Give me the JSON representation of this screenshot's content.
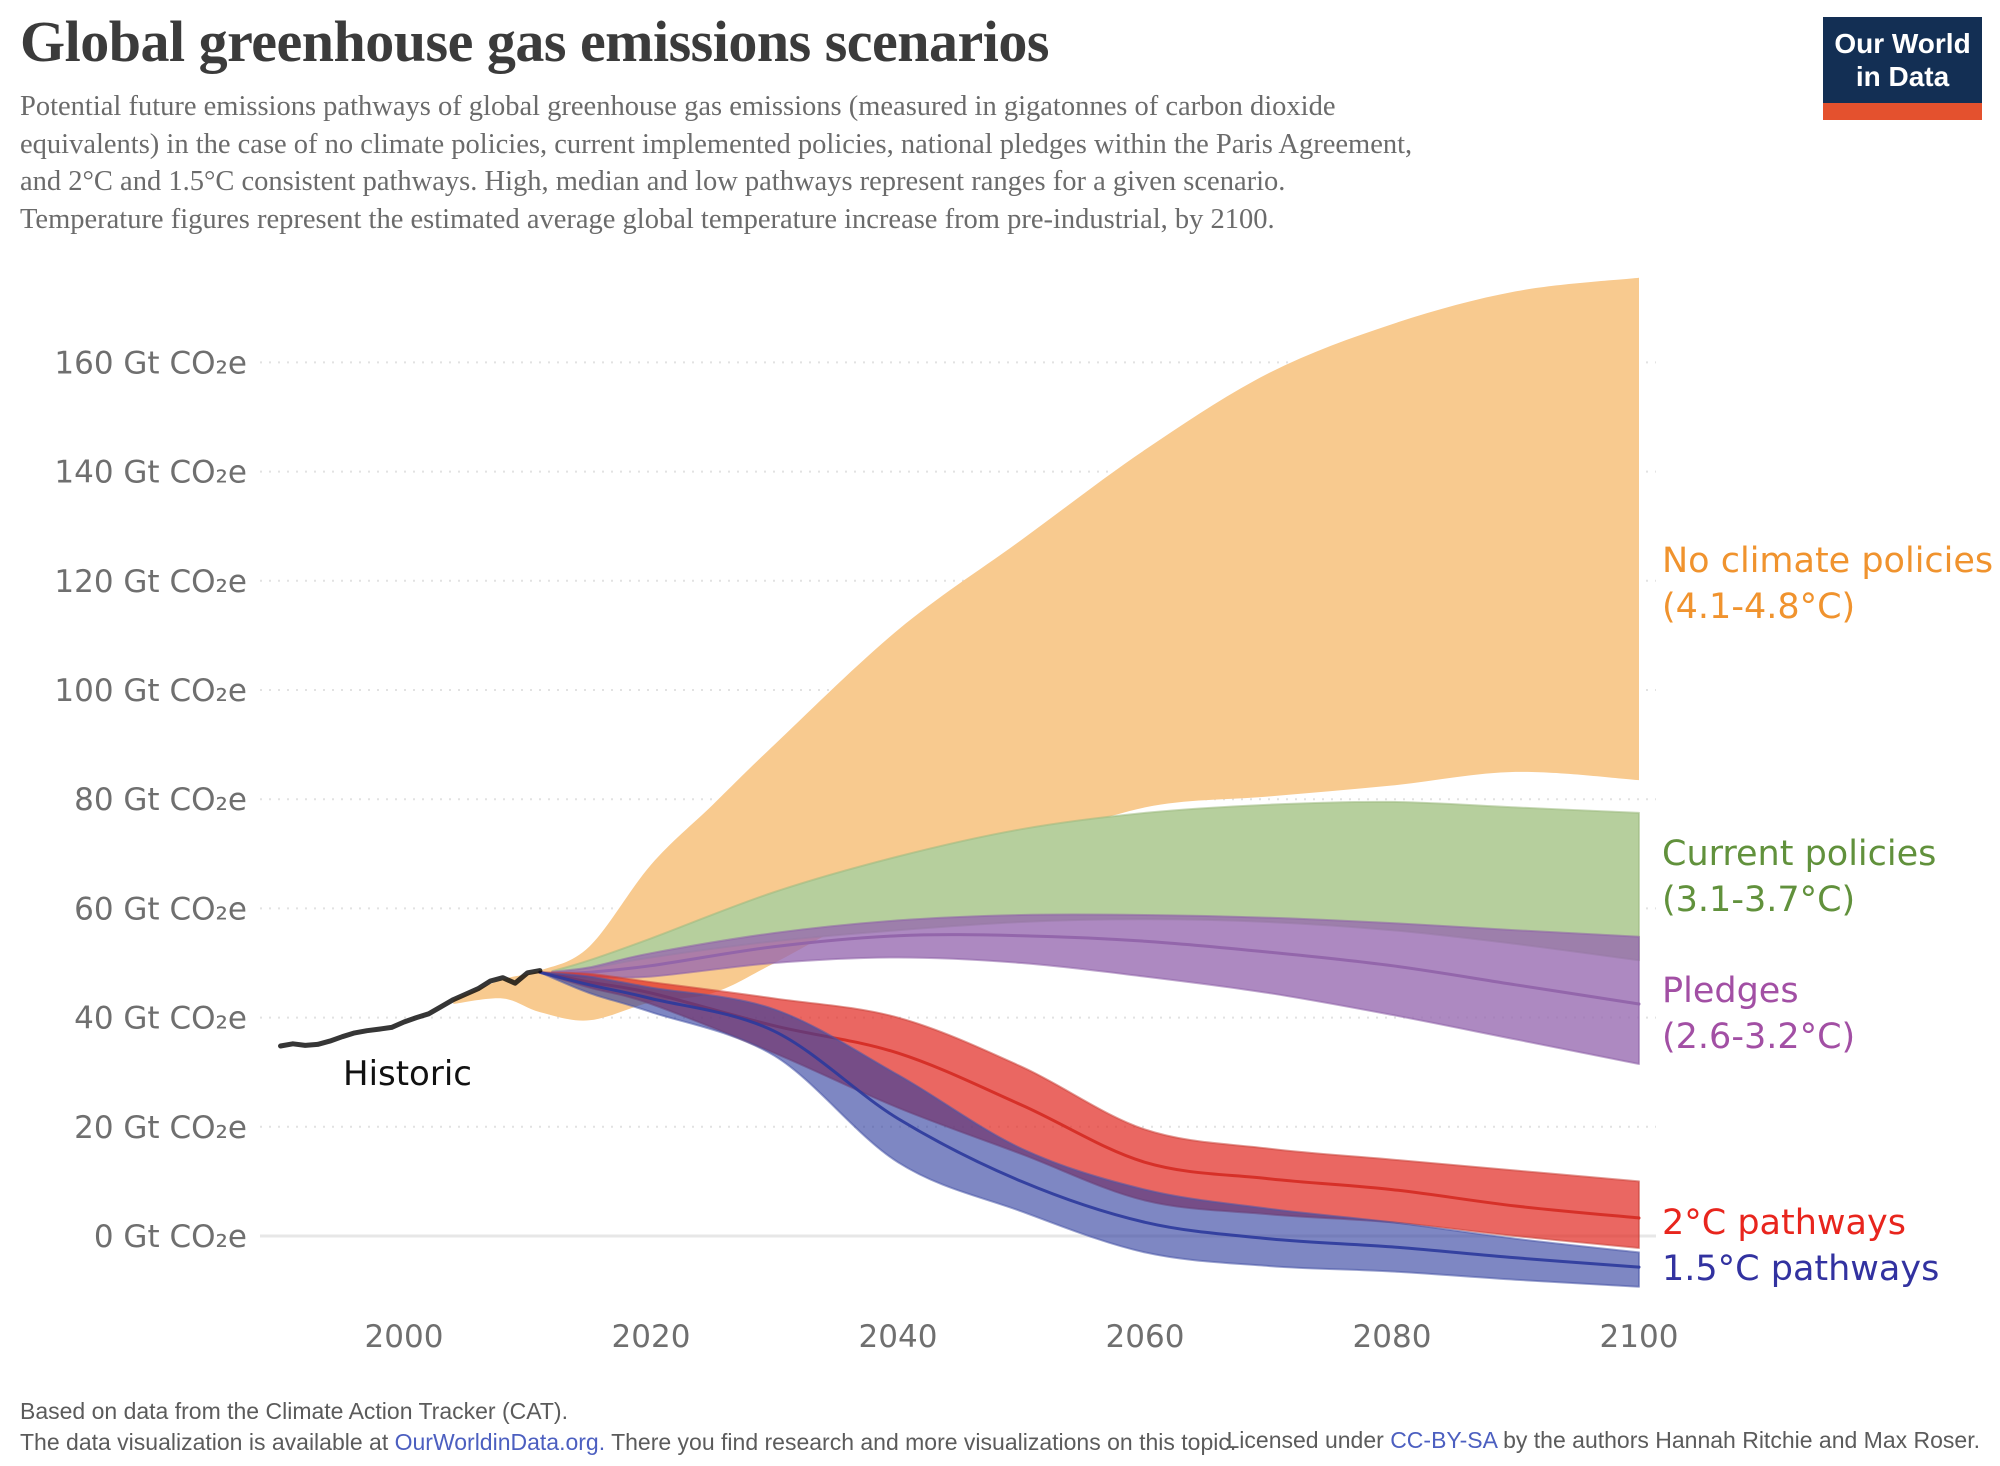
{
  "header": {
    "title": "Global greenhouse gas emissions scenarios",
    "subtitle_lines": [
      "Potential future emissions pathways of global greenhouse gas emissions (measured in gigatonnes of carbon dioxide",
      "equivalents) in the case of no climate policies, current implemented policies, national pledges within the Paris Agreement,",
      "and 2°C and 1.5°C consistent pathways. High, median and low pathways represent ranges for a given scenario.",
      "Temperature figures represent the estimated average global temperature increase from pre-industrial, by 2100."
    ]
  },
  "logo": {
    "line1": "Our World",
    "line2": "in Data",
    "bg": "#132F54",
    "bar": "#E4512E"
  },
  "chart_data": {
    "type": "area",
    "title": "Global greenhouse gas emissions scenarios",
    "y_unit": "Gt CO₂e",
    "xlabel": "",
    "ylabel": "Gt CO₂e",
    "x_ticks": [
      2000,
      2020,
      2040,
      2060,
      2080,
      2100
    ],
    "y_ticks": [
      0,
      20,
      40,
      60,
      80,
      100,
      120,
      140,
      160
    ],
    "x_range": [
      1990,
      2100
    ],
    "y_range": [
      -17,
      178
    ],
    "grid": "dotted-horizontal",
    "legend_position": "right-of-bands",
    "historic": {
      "label": "Historic",
      "color": "rgba(10,10,10,0.82)",
      "years": [
        1990,
        1991,
        1992,
        1993,
        1994,
        1995,
        1996,
        1997,
        1998,
        1999,
        2000,
        2001,
        2002,
        2003,
        2004,
        2005,
        2006,
        2007,
        2008,
        2009,
        2010,
        2011
      ],
      "values": [
        34.8,
        35.2,
        34.9,
        35.1,
        35.7,
        36.5,
        37.2,
        37.6,
        37.9,
        38.2,
        39.2,
        40.0,
        40.7,
        42.0,
        43.3,
        44.3,
        45.3,
        46.7,
        47.3,
        46.3,
        48.2,
        48.6
      ]
    },
    "scenarios": [
      {
        "id": "no_climate_policies",
        "name": "No climate policies",
        "temp_range": "(4.1-4.8°C)",
        "fill": "#F8CA8F",
        "stroke": "none",
        "label_color": "#F0932E",
        "years": [
          2004,
          2008,
          2011,
          2015,
          2020,
          2025,
          2030,
          2040,
          2050,
          2060,
          2070,
          2080,
          2090,
          2100
        ],
        "high": [
          43.3,
          47,
          48.6,
          53,
          68,
          79,
          90,
          111,
          127.5,
          144,
          158,
          167,
          173,
          175.5
        ],
        "low": [
          42.5,
          43.5,
          41,
          39.5,
          42.8,
          44.5,
          50,
          62,
          71,
          78.5,
          80.5,
          82.5,
          85,
          83.5
        ]
      },
      {
        "id": "current_policies",
        "name": "Current policies",
        "temp_range": "(3.1-3.7°C)",
        "fill": "#B6CF9D",
        "stroke": "#9CB97F",
        "label_color": "#61913C",
        "years": [
          2012,
          2015,
          2020,
          2030,
          2040,
          2050,
          2060,
          2070,
          2080,
          2090,
          2100
        ],
        "high": [
          48.5,
          50.5,
          54.5,
          63,
          69.5,
          74.5,
          77.5,
          79,
          79.5,
          78.5,
          77.5
        ],
        "low": [
          48.2,
          49,
          51,
          54,
          56,
          57.5,
          58,
          57.5,
          56,
          53.5,
          50.5
        ]
      },
      {
        "id": "pledges",
        "name": "Pledges",
        "temp_range": "(2.6-3.2°C)",
        "fill": "rgba(150,104,176,0.78)",
        "stroke": "#8E62A8",
        "median_color": "#9063A8",
        "label_color": "#A24FA4",
        "years": [
          2012,
          2015,
          2020,
          2030,
          2040,
          2050,
          2060,
          2070,
          2080,
          2090,
          2100
        ],
        "high": [
          48.4,
          49.2,
          51.8,
          55.5,
          57.8,
          58.8,
          58.8,
          58.3,
          57.3,
          56,
          54.8
        ],
        "median": [
          48.1,
          48.3,
          49.5,
          53,
          55,
          55,
          54,
          52,
          49.5,
          46,
          42.5
        ],
        "low": [
          47.8,
          47.5,
          47.5,
          50,
          51,
          50,
          47.5,
          44.5,
          40.5,
          36,
          31.5
        ]
      },
      {
        "id": "two_degree",
        "name": "2°C pathways",
        "temp_range": "",
        "fill": "rgba(226,44,38,0.72)",
        "stroke": "#C9453C",
        "median_color": "#D42A22",
        "label_color": "#E8251D",
        "years": [
          2011,
          2015,
          2020,
          2030,
          2040,
          2050,
          2060,
          2070,
          2080,
          2090,
          2100
        ],
        "high": [
          48.3,
          48,
          46.5,
          43.5,
          40,
          31,
          19.5,
          16,
          14,
          12,
          10
        ],
        "median": [
          48.3,
          46.5,
          44.5,
          38.5,
          33.5,
          24,
          13.5,
          10.5,
          8.5,
          5.5,
          3.3
        ],
        "low": [
          48.3,
          45.5,
          42.5,
          33.5,
          23.5,
          15,
          6.5,
          4,
          2.5,
          0,
          -2.2
        ]
      },
      {
        "id": "one_five_degree",
        "name": "1.5°C pathways",
        "temp_range": "",
        "fill": "rgba(47,62,158,0.62)",
        "stroke": "#4A57A8",
        "median_color": "#2C3A9C",
        "label_color": "#3232A0",
        "years": [
          2011,
          2015,
          2020,
          2030,
          2040,
          2050,
          2060,
          2070,
          2080,
          2090,
          2100
        ],
        "high": [
          48.3,
          47.5,
          45.5,
          41.5,
          29.5,
          16,
          8.5,
          5,
          2.5,
          -0.5,
          -3
        ],
        "median": [
          48.3,
          46,
          43.5,
          37.5,
          21.5,
          10,
          2.5,
          -0.5,
          -2,
          -4,
          -5.7
        ],
        "low": [
          48.3,
          44.5,
          41,
          33,
          13.5,
          4.5,
          -3,
          -5.5,
          -6.5,
          -8,
          -9.3
        ]
      }
    ]
  },
  "footer": {
    "source_line": "Based on data from the Climate Action Tracker (CAT).",
    "availability_pre": "The data visualization is available at ",
    "availability_link": "OurWorldinData.org.",
    "availability_post": " There you find research and more visualizations on this topic.",
    "license_pre": "Licensed under ",
    "license_link": "CC-BY-SA",
    "license_post": " by the authors Hannah Ritchie and Max Roser.",
    "link_color": "#4C5FC0"
  }
}
